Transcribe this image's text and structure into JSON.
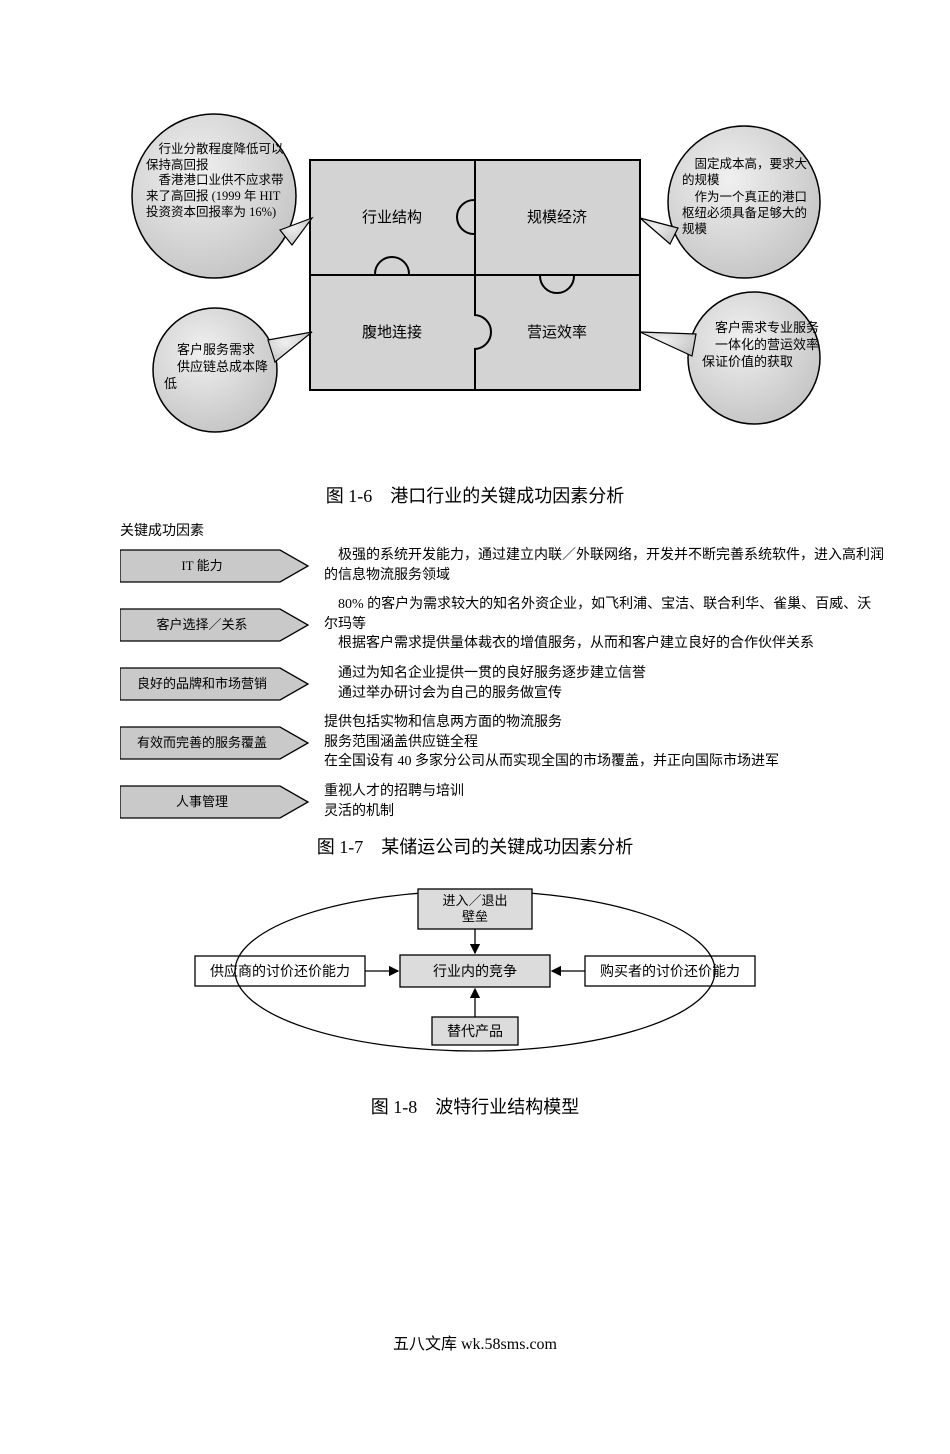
{
  "figure16": {
    "caption": "图 1-6　港口行业的关键成功因素分析",
    "puzzle": {
      "boxes": [
        {
          "id": "industry-structure",
          "label": "行业结构"
        },
        {
          "id": "scale-economy",
          "label": "规模经济"
        },
        {
          "id": "hinterland-link",
          "label": "腹地连接"
        },
        {
          "id": "operation-eff",
          "label": "营运效率"
        }
      ],
      "fill": "#d3d3d3",
      "stroke": "#000000",
      "font_size": 15
    },
    "callouts": {
      "top_left": {
        "lines": [
          "　行业分散程度降低可以保持高回报",
          "　香港港口业供不应求带来了高回报 (1999 年 HIT 投资资本回报率为 16%)"
        ]
      },
      "top_right": {
        "lines": [
          "　固定成本高，要求大的规模",
          "　作为一个真正的港口枢纽必须具备足够大的规模"
        ]
      },
      "bottom_left": {
        "lines": [
          "　客户服务需求",
          "　供应链总成本降低"
        ]
      },
      "bottom_right": {
        "lines": [
          "　客户需求专业服务",
          "　一体化的营运效率保证价值的获取"
        ]
      },
      "circle_fill": "#d9d9d9",
      "circle_stroke": "#000000",
      "font_size": 13
    }
  },
  "figure17": {
    "header": "关键成功因素",
    "caption": "图 1-7　某储运公司的关键成功因素分析",
    "rows": [
      {
        "label": "IT 能力",
        "desc": "　极强的系统开发能力，通过建立内联／外联网络，开发并不断完善系统软件，进入高利润的信息物流服务领域"
      },
      {
        "label": "客户选择／关系",
        "desc": "　80% 的客户为需求较大的知名外资企业，如飞利浦、宝洁、联合利华、雀巢、百威、沃尔玛等\n　根据客户需求提供量体裁衣的增值服务，从而和客户建立良好的合作伙伴关系"
      },
      {
        "label": "良好的品牌和市场营销",
        "desc": "　通过为知名企业提供一贯的良好服务逐步建立信誉\n　通过举办研讨会为自己的服务做宣传"
      },
      {
        "label": "有效而完善的服务覆盖",
        "desc": "提供包括实物和信息两方面的物流服务\n服务范围涵盖供应链全程\n在全国设有 40 多家分公司从而实现全国的市场覆盖，并正向国际市场进军"
      },
      {
        "label": "人事管理",
        "desc": "重视人才的招聘与培训\n灵活的机制"
      }
    ],
    "arrow_fill": "#c9c9c9",
    "arrow_stroke": "#000000",
    "label_font_size": 13,
    "desc_font_size": 14
  },
  "figure18": {
    "caption": "图 1-8　波特行业结构模型",
    "boxes": {
      "top": "进入／退出\n壁垒",
      "center": "行业内的竞争",
      "left": "供应商的讨价还价能力",
      "right": "购买者的讨价还价能力",
      "bottom": "替代产品"
    },
    "box_fill": "#dcdcdc",
    "box_stroke": "#000000",
    "font_size": 14
  },
  "footer": "五八文库 wk.58sms.com"
}
